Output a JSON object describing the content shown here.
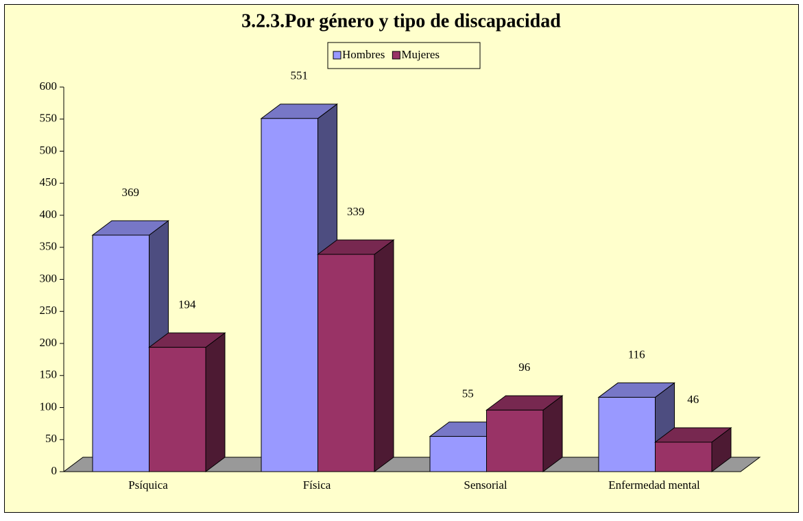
{
  "chart_data": {
    "type": "bar3d",
    "title": "3.2.3.Por género y tipo de discapacidad",
    "categories": [
      "Psíquica",
      "Física",
      "Sensorial",
      "Enfermedad mental"
    ],
    "series": [
      {
        "name": "Hombres",
        "color": "#9999ff",
        "values": [
          369,
          551,
          55,
          116
        ]
      },
      {
        "name": "Mujeres",
        "color": "#993366",
        "values": [
          194,
          339,
          96,
          46
        ]
      }
    ],
    "ylim": [
      0,
      600
    ],
    "yticks": [
      0,
      50,
      100,
      150,
      200,
      250,
      300,
      350,
      400,
      450,
      500,
      550,
      600
    ],
    "legend": "top",
    "background": "#ffffcc",
    "floor_color": "#999999"
  }
}
